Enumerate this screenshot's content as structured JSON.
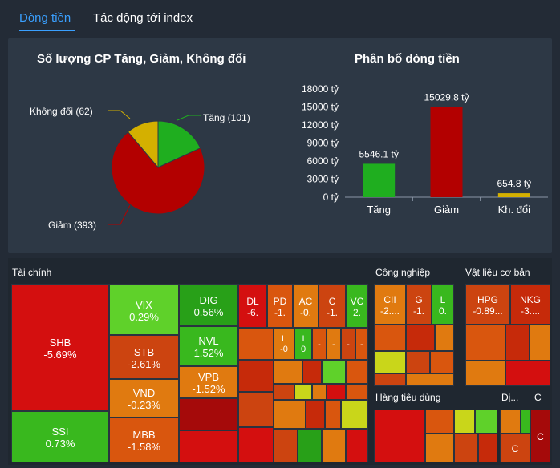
{
  "tabs": {
    "active": "Dòng tiền",
    "inactive": "Tác động tới index"
  },
  "pie": {
    "title": "Số lượng CP Tăng, Giảm, Không đổi",
    "labels": {
      "tang": "Tăng (101)",
      "giam": "Giảm (393)",
      "khong_doi": "Không đổi (62)"
    }
  },
  "bar": {
    "title": "Phân bổ dòng tiền",
    "value_labels": {
      "tang": "5546.1 tỷ",
      "giam": "15029.8 tỷ",
      "kh": "654.8 tỷ"
    }
  },
  "colors": {
    "up": "#1fae1f",
    "down": "#b30000",
    "flat": "#d4b000"
  },
  "chart_data": [
    {
      "type": "pie",
      "title": "Số lượng CP Tăng, Giảm, Không đổi",
      "categories": [
        "Tăng",
        "Giảm",
        "Không đổi"
      ],
      "values": [
        101,
        393,
        62
      ],
      "colors": [
        "#1fae1f",
        "#b30000",
        "#d4b000"
      ]
    },
    {
      "type": "bar",
      "title": "Phân bổ dòng tiền",
      "categories": [
        "Tăng",
        "Giảm",
        "Kh. đổi"
      ],
      "values": [
        5546.1,
        15029.8,
        654.8
      ],
      "unit": "tỷ",
      "yticks": [
        "0 tỷ",
        "3000 tỷ",
        "6000 tỷ",
        "9000 tỷ",
        "12000 tỷ",
        "15000 tỷ",
        "18000 tỷ"
      ],
      "ylim": [
        0,
        18000
      ],
      "colors": [
        "#1fae1f",
        "#b30000",
        "#d4b000"
      ]
    }
  ],
  "treemap": {
    "sectors": {
      "tai_chinh": "Tài chính",
      "cong_nghiep": "Công nghiệp",
      "vat_lieu": "Vật liệu cơ bản",
      "tieu_dung": "Hàng tiêu dùng",
      "dj": "Dị...",
      "c": "C"
    },
    "tiles": {
      "shb": {
        "t": "SHB",
        "v": "-5.69%"
      },
      "ssi": {
        "t": "SSI",
        "v": "0.73%"
      },
      "vix": {
        "t": "VIX",
        "v": "0.29%"
      },
      "stb": {
        "t": "STB",
        "v": "-2.61%"
      },
      "vnd": {
        "t": "VND",
        "v": "-0.23%"
      },
      "mbb": {
        "t": "MBB",
        "v": "-1.58%"
      },
      "dig": {
        "t": "DIG",
        "v": "0.56%"
      },
      "nvl": {
        "t": "NVL",
        "v": "1.52%"
      },
      "vpb": {
        "t": "VPB",
        "v": "-1.52%"
      },
      "dl": {
        "t": "DL",
        "v": "-6."
      },
      "pd": {
        "t": "PD",
        "v": "-1."
      },
      "ac": {
        "t": "AC",
        "v": "-0."
      },
      "c1": {
        "t": "C",
        "v": "-1."
      },
      "vc": {
        "t": "VC",
        "v": "2."
      },
      "l1": {
        "t": "L",
        "v": "-0"
      },
      "i1": {
        "t": "I",
        "v": "0"
      },
      "cii": {
        "t": "CII",
        "v": "-2...."
      },
      "g1": {
        "t": "G",
        "v": "-1."
      },
      "l2": {
        "t": "L",
        "v": "0."
      },
      "hpg": {
        "t": "HPG",
        "v": "-0.89..."
      },
      "nkg": {
        "t": "NKG",
        "v": "-3...."
      },
      "c2": {
        "t": "C",
        "v": ""
      },
      "dash": {
        "t": "-",
        "v": ""
      }
    }
  }
}
